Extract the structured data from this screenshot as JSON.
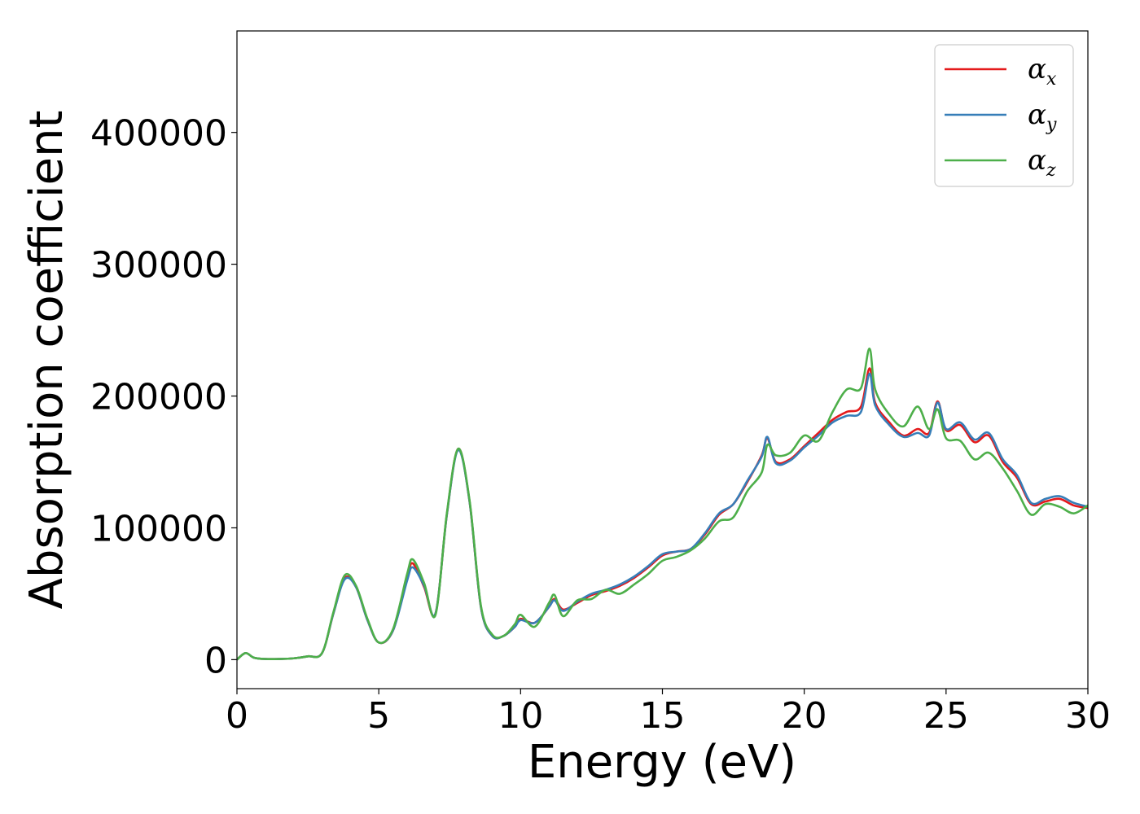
{
  "chart_data": {
    "type": "line",
    "title": "",
    "xlabel": "Energy (eV)",
    "ylabel": "Absorption coefficient",
    "xlim": [
      0,
      30
    ],
    "ylim": [
      -22000,
      477000
    ],
    "xticks": [
      0,
      5,
      10,
      15,
      20,
      25,
      30
    ],
    "xtick_labels": [
      "0",
      "5",
      "10",
      "15",
      "20",
      "25",
      "30"
    ],
    "yticks": [
      0,
      100000,
      200000,
      300000,
      400000
    ],
    "ytick_labels": [
      "0",
      "100000",
      "200000",
      "300000",
      "400000"
    ],
    "grid": false,
    "legend_position": "top-right",
    "series": [
      {
        "name": "αx",
        "symbol": "α",
        "subscript": "x",
        "color": "#e41a1c",
        "x": [
          0,
          0.3,
          0.6,
          1,
          1.5,
          2,
          2.5,
          3,
          3.4,
          3.8,
          4.2,
          4.6,
          5,
          5.5,
          6,
          6.2,
          6.6,
          7,
          7.4,
          7.8,
          8.2,
          8.6,
          9,
          9.4,
          9.8,
          10,
          10.5,
          11,
          11.2,
          11.5,
          12,
          12.5,
          13,
          13.5,
          14,
          14.5,
          15,
          15.5,
          16,
          16.5,
          17,
          17.5,
          18,
          18.5,
          18.7,
          19,
          19.5,
          20,
          20.5,
          21,
          21.5,
          22,
          22.3,
          22.5,
          23,
          23.5,
          24,
          24.4,
          24.7,
          25,
          25.5,
          26,
          26.5,
          27,
          27.5,
          28,
          28.5,
          29,
          29.5,
          30
        ],
        "y": [
          0,
          5000,
          1500,
          500,
          500,
          1000,
          2500,
          5000,
          35000,
          62000,
          55000,
          30000,
          13000,
          22000,
          62000,
          73000,
          55000,
          35000,
          110000,
          160000,
          120000,
          40000,
          18000,
          18000,
          25000,
          31000,
          28000,
          40000,
          46000,
          38000,
          43000,
          49000,
          52000,
          56000,
          62000,
          70000,
          79000,
          82000,
          84000,
          95000,
          110000,
          118000,
          135000,
          155000,
          168000,
          150000,
          152000,
          162000,
          172000,
          182000,
          188000,
          192000,
          221000,
          195000,
          180000,
          170000,
          175000,
          172000,
          196000,
          174000,
          178000,
          165000,
          170000,
          150000,
          138000,
          118000,
          120000,
          122000,
          117000,
          115000
        ]
      },
      {
        "name": "αy",
        "symbol": "α",
        "subscript": "y",
        "color": "#377eb8",
        "x": [
          0,
          0.3,
          0.6,
          1,
          1.5,
          2,
          2.5,
          3,
          3.4,
          3.8,
          4.2,
          4.6,
          5,
          5.5,
          6,
          6.2,
          6.6,
          7,
          7.4,
          7.8,
          8.2,
          8.6,
          9,
          9.4,
          9.8,
          10,
          10.5,
          11,
          11.2,
          11.5,
          12,
          12.5,
          13,
          13.5,
          14,
          14.5,
          15,
          15.5,
          16,
          16.5,
          17,
          17.5,
          18,
          18.5,
          18.7,
          19,
          19.5,
          20,
          20.5,
          21,
          21.5,
          22,
          22.3,
          22.5,
          23,
          23.5,
          24,
          24.4,
          24.7,
          25,
          25.5,
          26,
          26.5,
          27,
          27.5,
          28,
          28.5,
          29,
          29.5,
          30
        ],
        "y": [
          0,
          5000,
          1500,
          500,
          500,
          1000,
          2500,
          5000,
          35000,
          61000,
          55000,
          30000,
          13000,
          22000,
          60000,
          70000,
          56000,
          35000,
          110000,
          159000,
          120000,
          40000,
          18000,
          18000,
          25000,
          30000,
          28000,
          40000,
          45000,
          37000,
          44000,
          50000,
          53000,
          57000,
          63000,
          71000,
          80000,
          82000,
          84000,
          96000,
          111000,
          118000,
          136000,
          154000,
          169000,
          149000,
          151000,
          161000,
          170000,
          180000,
          185000,
          188000,
          217000,
          193000,
          178000,
          169000,
          172000,
          170000,
          195000,
          175000,
          180000,
          167000,
          172000,
          152000,
          140000,
          119000,
          122000,
          124000,
          119000,
          116000
        ]
      },
      {
        "name": "αz",
        "symbol": "α",
        "subscript": "z",
        "color": "#4daf4a",
        "x": [
          0,
          0.3,
          0.6,
          1,
          1.5,
          2,
          2.5,
          3,
          3.4,
          3.8,
          4.2,
          4.6,
          5,
          5.5,
          6,
          6.2,
          6.6,
          7,
          7.4,
          7.8,
          8.2,
          8.6,
          9,
          9.4,
          9.8,
          10,
          10.5,
          11,
          11.2,
          11.5,
          12,
          12.5,
          13,
          13.5,
          14,
          14.5,
          15,
          15.5,
          16,
          16.5,
          17,
          17.5,
          18,
          18.5,
          18.7,
          19,
          19.5,
          20,
          20.5,
          21,
          21.5,
          22,
          22.3,
          22.5,
          23,
          23.5,
          24,
          24.4,
          24.7,
          25,
          25.5,
          26,
          26.5,
          27,
          27.5,
          28,
          28.5,
          29,
          29.5,
          30
        ],
        "y": [
          0,
          5000,
          1500,
          500,
          500,
          1000,
          2500,
          5000,
          36000,
          64000,
          56000,
          31000,
          13000,
          23000,
          65000,
          76000,
          58000,
          34000,
          111000,
          160000,
          121000,
          41000,
          19000,
          18000,
          27000,
          34000,
          25000,
          43000,
          49000,
          33000,
          45000,
          46000,
          53000,
          50000,
          57000,
          65000,
          75000,
          78000,
          83000,
          92000,
          105000,
          108000,
          128000,
          142000,
          163000,
          155000,
          157000,
          170000,
          166000,
          188000,
          205000,
          206000,
          236000,
          205000,
          186000,
          177000,
          192000,
          175000,
          190000,
          168000,
          166000,
          152000,
          157000,
          145000,
          128000,
          110000,
          118000,
          116000,
          111000,
          117000
        ]
      }
    ]
  }
}
